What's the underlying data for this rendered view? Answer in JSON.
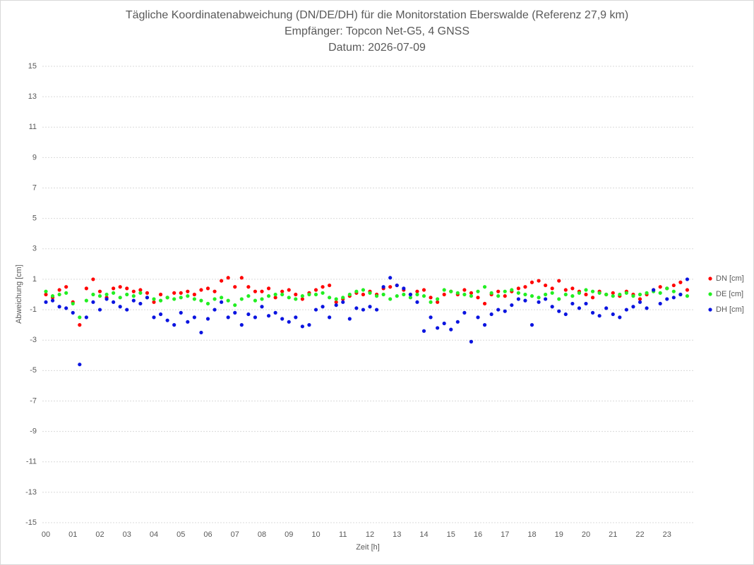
{
  "chart_data": {
    "type": "scatter",
    "title": "Tägliche Koordinatenabweichung (DN/DE/DH) für die Monitorstation Eberswalde (Referenz 27,9 km)",
    "subtitle": [
      "Empfänger: Topcon Net-G5, 4 GNSS",
      "Datum: 2026-07-09"
    ],
    "x_label": "Zeit [h]",
    "y_label": "Abweichung [cm]",
    "xlim": [
      0,
      24
    ],
    "ylim": [
      -15,
      15
    ],
    "xticks": [
      {
        "value": 0,
        "label": "00"
      },
      {
        "value": 1,
        "label": "01"
      },
      {
        "value": 2,
        "label": "02"
      },
      {
        "value": 3,
        "label": "03"
      },
      {
        "value": 4,
        "label": "04"
      },
      {
        "value": 5,
        "label": "05"
      },
      {
        "value": 6,
        "label": "06"
      },
      {
        "value": 7,
        "label": "07"
      },
      {
        "value": 8,
        "label": "08"
      },
      {
        "value": 9,
        "label": "09"
      },
      {
        "value": 10,
        "label": "10"
      },
      {
        "value": 11,
        "label": "11"
      },
      {
        "value": 12,
        "label": "12"
      },
      {
        "value": 13,
        "label": "13"
      },
      {
        "value": 14,
        "label": "14"
      },
      {
        "value": 15,
        "label": "15"
      },
      {
        "value": 16,
        "label": "16"
      },
      {
        "value": 17,
        "label": "17"
      },
      {
        "value": 18,
        "label": "18"
      },
      {
        "value": 19,
        "label": "19"
      },
      {
        "value": 20,
        "label": "20"
      },
      {
        "value": 21,
        "label": "21"
      },
      {
        "value": 22,
        "label": "22"
      },
      {
        "value": 23,
        "label": "23"
      }
    ],
    "yticks": [
      -15,
      -13,
      -11,
      -9,
      -7,
      -5,
      -3,
      -1,
      1,
      3,
      5,
      7,
      9,
      11,
      13,
      15
    ],
    "grid": true,
    "legend": "right",
    "x": [
      0,
      0.25,
      0.5,
      0.75,
      1,
      1.25,
      1.5,
      1.75,
      2,
      2.25,
      2.5,
      2.75,
      3,
      3.25,
      3.5,
      3.75,
      4,
      4.25,
      4.5,
      4.75,
      5,
      5.25,
      5.5,
      5.75,
      6,
      6.25,
      6.5,
      6.75,
      7,
      7.25,
      7.5,
      7.75,
      8,
      8.25,
      8.5,
      8.75,
      9,
      9.25,
      9.5,
      9.75,
      10,
      10.25,
      10.5,
      10.75,
      11,
      11.25,
      11.5,
      11.75,
      12,
      12.25,
      12.5,
      12.75,
      13,
      13.25,
      13.5,
      13.75,
      14,
      14.25,
      14.5,
      14.75,
      15,
      15.25,
      15.5,
      15.75,
      16,
      16.25,
      16.5,
      16.75,
      17,
      17.25,
      17.5,
      17.75,
      18,
      18.25,
      18.5,
      18.75,
      19,
      19.25,
      19.5,
      19.75,
      20,
      20.25,
      20.5,
      20.75,
      21,
      21.25,
      21.5,
      21.75,
      22,
      22.25,
      22.5,
      22.75,
      23,
      23.25,
      23.5,
      23.75
    ],
    "series": [
      {
        "name": "DN [cm]",
        "color": "#ff0000",
        "values": [
          0,
          -0.2,
          0.3,
          0.5,
          -0.5,
          -2,
          0.4,
          1,
          0.2,
          -0.2,
          0.4,
          0.5,
          0.4,
          0.2,
          0.3,
          0.1,
          -0.5,
          0,
          -0.2,
          0.1,
          0.1,
          0.2,
          0,
          0.3,
          0.4,
          0.2,
          0.9,
          1.1,
          0.5,
          1.1,
          0.5,
          0.2,
          0.2,
          0.4,
          -0.2,
          0.2,
          0.3,
          0,
          -0.3,
          0.1,
          0.3,
          0.5,
          0.6,
          -0.5,
          -0.3,
          -0.1,
          0.1,
          0,
          0.2,
          0,
          0.4,
          0.5,
          0.6,
          0.3,
          0,
          0.2,
          0.3,
          -0.2,
          -0.5,
          0,
          0.2,
          0,
          0.3,
          0.1,
          -0.2,
          -0.6,
          0,
          0.2,
          -0.1,
          0.2,
          0.4,
          0.5,
          0.8,
          0.9,
          0.6,
          0.4,
          0.9,
          0.3,
          0.4,
          0.2,
          0,
          -0.2,
          0.2,
          0,
          0.1,
          -0.1,
          0.2,
          0,
          -0.3,
          0,
          0.3,
          0.5,
          0.4,
          0.6,
          0.8,
          0.3
        ]
      },
      {
        "name": "DE [cm]",
        "color": "#22ee22",
        "values": [
          0.2,
          -0.1,
          0,
          0.1,
          -0.6,
          -1.5,
          -0.4,
          0,
          -0.1,
          0,
          0.1,
          -0.2,
          0,
          -0.1,
          0.1,
          -0.2,
          -0.3,
          -0.4,
          -0.2,
          -0.3,
          -0.2,
          -0.1,
          -0.3,
          -0.4,
          -0.6,
          -0.3,
          -0.2,
          -0.4,
          -0.7,
          -0.3,
          -0.1,
          -0.4,
          -0.3,
          -0.1,
          0,
          0,
          -0.2,
          -0.3,
          -0.1,
          0,
          0,
          0.1,
          -0.2,
          -0.3,
          -0.2,
          0,
          0.2,
          0.3,
          0.1,
          -0.1,
          0,
          -0.3,
          -0.1,
          0,
          -0.2,
          0,
          -0.1,
          -0.5,
          -0.3,
          0.3,
          0.2,
          0.1,
          0,
          -0.1,
          0.2,
          0.5,
          0.1,
          -0.1,
          0.2,
          0.3,
          0.1,
          0,
          -0.1,
          -0.2,
          0,
          0.1,
          -0.3,
          0,
          -0.1,
          0.1,
          0.3,
          0.2,
          0.1,
          0,
          -0.1,
          0,
          0.1,
          -0.1,
          0,
          0.1,
          0.2,
          0.1,
          0.4,
          0.2,
          0,
          -0.1
        ]
      },
      {
        "name": "DH [cm]",
        "color": "#0a14e0",
        "values": [
          -0.5,
          -0.4,
          -0.8,
          -0.9,
          -1.2,
          -4.6,
          -1.5,
          -0.5,
          -1,
          -0.3,
          -0.5,
          -0.8,
          -1,
          -0.4,
          -0.6,
          -0.2,
          -1.5,
          -1.3,
          -1.7,
          -2,
          -1.2,
          -1.8,
          -1.5,
          -2.5,
          -1.6,
          -1,
          -0.5,
          -1.5,
          -1.2,
          -2,
          -1.3,
          -1.5,
          -0.8,
          -1.4,
          -1.2,
          -1.6,
          -1.8,
          -1.5,
          -2.1,
          -2,
          -1,
          -0.8,
          -1.5,
          -0.7,
          -0.5,
          -1.6,
          -0.9,
          -1,
          -0.8,
          -1,
          0.5,
          1.1,
          0.6,
          0.4,
          0,
          -0.5,
          -2.4,
          -1.5,
          -2.2,
          -1.9,
          -2.3,
          -1.8,
          -1.2,
          -3.1,
          -1.5,
          -2,
          -1.3,
          -1,
          -1.1,
          -0.7,
          -0.3,
          -0.4,
          -2,
          -0.5,
          -0.3,
          -0.8,
          -1.1,
          -1.3,
          -0.6,
          -0.9,
          -0.6,
          -1.2,
          -1.4,
          -0.9,
          -1.3,
          -1.5,
          -1,
          -0.8,
          -0.5,
          -0.9,
          0.3,
          -0.6,
          -0.3,
          -0.2,
          0,
          1
        ]
      }
    ]
  }
}
